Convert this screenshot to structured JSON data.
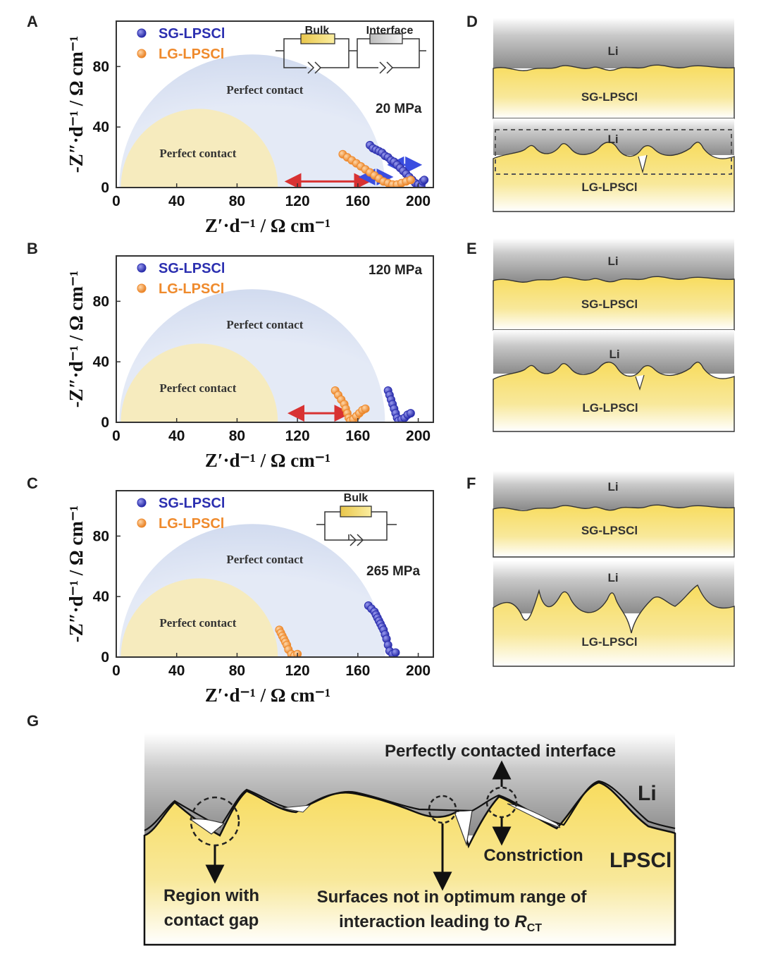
{
  "panels_left": [
    {
      "letter": "A",
      "pressure": "20 MPa",
      "circuit": [
        "Bulk",
        "Interface"
      ]
    },
    {
      "letter": "B",
      "pressure": "120 MPa",
      "circuit": []
    },
    {
      "letter": "C",
      "pressure": "265 MPa",
      "circuit": [
        "Bulk"
      ]
    }
  ],
  "panels_right": [
    {
      "letter": "D",
      "top_li": "Li",
      "top_mat": "SG-LPSCl",
      "bot_li": "Li",
      "bot_mat": "LG-LPSCl"
    },
    {
      "letter": "E",
      "top_li": "Li",
      "top_mat": "SG-LPSCl",
      "bot_li": "Li",
      "bot_mat": "LG-LPSCl"
    },
    {
      "letter": "F",
      "top_li": "Li",
      "top_mat": "SG-LPSCl",
      "bot_li": "Li",
      "bot_mat": "LG-LPSCl"
    }
  ],
  "contact_label": "Perfect contact",
  "colors": {
    "sg": "#2b2fb0",
    "lg": "#ef8a2c",
    "blue_region": "#dfe6f5",
    "yellow_region": "#f7eab8",
    "red_arrow": "#d83232",
    "blue_arrow": "#3a4de0"
  },
  "chart_data": [
    {
      "type": "scatter",
      "panel": "A",
      "xlabel": "Z′·d⁻¹ / Ω cm⁻¹",
      "ylabel": "-Z″·d⁻¹ / Ω cm⁻¹",
      "xlim": [
        0,
        210
      ],
      "ylim": [
        0,
        110
      ],
      "xticks": [
        0,
        40,
        80,
        120,
        160,
        200
      ],
      "yticks": [
        0,
        40,
        80
      ],
      "legend": [
        "SG-LPSCl",
        "LG-LPSCl"
      ],
      "legend_position": "top-left",
      "regions": [
        {
          "name": "Perfect contact",
          "center": 90,
          "radius": 88,
          "color": "blue"
        },
        {
          "name": "Perfect contact",
          "center": 55,
          "radius": 52,
          "color": "yellow"
        }
      ],
      "series": [
        {
          "name": "SG-LPSCl",
          "x": [
            168,
            170,
            172,
            174,
            176,
            178,
            180,
            182,
            184,
            186,
            188,
            190,
            192,
            194,
            196,
            198,
            200,
            202,
            203,
            204
          ],
          "y": [
            28,
            26,
            25,
            24,
            23,
            21,
            20,
            18,
            17,
            15,
            13,
            11,
            9,
            7,
            5,
            3,
            2,
            1,
            4,
            5
          ]
        },
        {
          "name": "LG-LPSCl",
          "x": [
            150,
            153,
            156,
            159,
            162,
            165,
            168,
            171,
            174,
            177,
            180,
            183,
            186,
            189,
            192,
            195
          ],
          "y": [
            22,
            20,
            18,
            16,
            14,
            12,
            10,
            8,
            6,
            4,
            3,
            2,
            2,
            3,
            4,
            5
          ]
        }
      ]
    },
    {
      "type": "scatter",
      "panel": "B",
      "xlabel": "Z′·d⁻¹ / Ω cm⁻¹",
      "ylabel": "-Z″·d⁻¹ / Ω cm⁻¹",
      "xlim": [
        0,
        210
      ],
      "ylim": [
        0,
        110
      ],
      "xticks": [
        0,
        40,
        80,
        120,
        160,
        200
      ],
      "yticks": [
        0,
        40,
        80
      ],
      "legend": [
        "SG-LPSCl",
        "LG-LPSCl"
      ],
      "legend_position": "top-left",
      "regions": [
        {
          "name": "Perfect contact",
          "center": 90,
          "radius": 88,
          "color": "blue"
        },
        {
          "name": "Perfect contact",
          "center": 55,
          "radius": 52,
          "color": "yellow"
        }
      ],
      "series": [
        {
          "name": "SG-LPSCl",
          "x": [
            180,
            181,
            182,
            183,
            184,
            185,
            186,
            187,
            189,
            191,
            193,
            195
          ],
          "y": [
            21,
            18,
            15,
            12,
            9,
            6,
            3,
            1,
            2,
            3,
            5,
            6
          ]
        },
        {
          "name": "LG-LPSCl",
          "x": [
            145,
            147,
            149,
            151,
            152,
            153,
            154,
            155,
            157,
            159,
            161,
            163,
            165
          ],
          "y": [
            21,
            18,
            15,
            12,
            9,
            6,
            3,
            1,
            2,
            4,
            6,
            8,
            9
          ]
        }
      ]
    },
    {
      "type": "scatter",
      "panel": "C",
      "xlabel": "Z′·d⁻¹ / Ω cm⁻¹",
      "ylabel": "-Z″·d⁻¹ / Ω cm⁻¹",
      "xlim": [
        0,
        210
      ],
      "ylim": [
        0,
        110
      ],
      "xticks": [
        0,
        40,
        80,
        120,
        160,
        200
      ],
      "yticks": [
        0,
        40,
        80
      ],
      "legend": [
        "SG-LPSCl",
        "LG-LPSCl"
      ],
      "legend_position": "top-left",
      "regions": [
        {
          "name": "Perfect contact",
          "center": 90,
          "radius": 88,
          "color": "blue"
        },
        {
          "name": "Perfect contact",
          "center": 55,
          "radius": 52,
          "color": "yellow"
        }
      ],
      "series": [
        {
          "name": "SG-LPSCl",
          "x": [
            167,
            169,
            171,
            172,
            173,
            174,
            175,
            176,
            177,
            178,
            179,
            180,
            181,
            183,
            185
          ],
          "y": [
            34,
            32,
            30,
            28,
            26,
            24,
            22,
            20,
            18,
            15,
            12,
            8,
            4,
            2,
            3
          ]
        },
        {
          "name": "LG-LPSCl",
          "x": [
            108,
            109,
            110,
            111,
            112,
            113,
            114,
            116,
            118,
            120
          ],
          "y": [
            18,
            16,
            14,
            12,
            10,
            8,
            5,
            2,
            1,
            2
          ]
        }
      ]
    }
  ],
  "panel_g": {
    "letter": "G",
    "li": "Li",
    "lpscl": "LPSCl",
    "perfect": "Perfectly contacted interface",
    "constriction": "Constriction",
    "gap_line1": "Region with",
    "gap_line2": "contact gap",
    "surf_line1": "Surfaces not in optimum range of",
    "surf_line2": "interaction leading to ",
    "rct": "R",
    "rct_sub": "CT"
  }
}
